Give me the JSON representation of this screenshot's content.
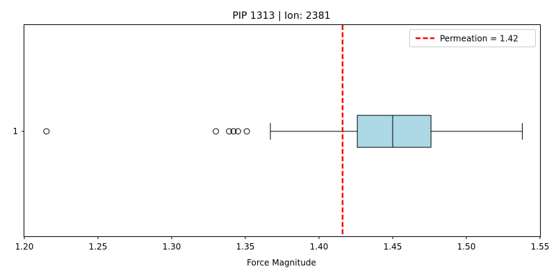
{
  "chart_data": {
    "type": "boxplot",
    "title": "PIP 1313 | Ion: 2381",
    "xlabel": "Force Magnitude",
    "ylabel": "",
    "orientation": "horizontal",
    "xlim": [
      1.2,
      1.55
    ],
    "x_ticks": [
      "1.20",
      "1.25",
      "1.30",
      "1.35",
      "1.40",
      "1.45",
      "1.50",
      "1.55"
    ],
    "y_categories": [
      "1"
    ],
    "box": {
      "whisker_low": 1.367,
      "q1": 1.426,
      "median": 1.45,
      "q3": 1.476,
      "whisker_high": 1.538,
      "fill_color": "#add8e6",
      "outliers": [
        1.215,
        1.33,
        1.339,
        1.342,
        1.345,
        1.351
      ]
    },
    "reference_line": {
      "label": "Permeation = 1.42",
      "value": 1.416,
      "color": "#ff0000",
      "style": "dashed"
    },
    "legend_position": "top-right",
    "grid": false
  }
}
